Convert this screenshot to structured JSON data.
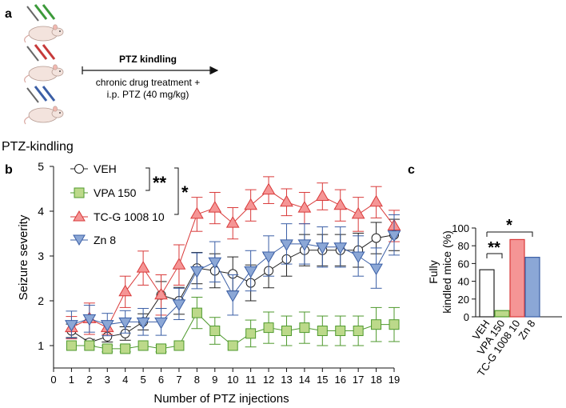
{
  "panels": {
    "a": "a",
    "b": "b",
    "c": "c"
  },
  "panel_a": {
    "protocol_title": "PTZ kindling",
    "treatment_line1": "chronic drug treatment +",
    "treatment_line2": "i.p. PTZ (40 mg/kg)",
    "caption": "PTZ-kindling"
  },
  "chart_data": [
    {
      "type": "line",
      "title": "",
      "xlabel": "Number of PTZ injections",
      "ylabel": "Seizure severity",
      "xlim": [
        0,
        19
      ],
      "ylim": [
        0.5,
        5
      ],
      "x": [
        1,
        2,
        3,
        4,
        5,
        6,
        7,
        8,
        9,
        10,
        11,
        12,
        13,
        14,
        15,
        16,
        17,
        18,
        19
      ],
      "xticks": [
        "0",
        "1",
        "2",
        "3",
        "4",
        "5",
        "6",
        "7",
        "8",
        "9",
        "10",
        "11",
        "12",
        "13",
        "14",
        "15",
        "16",
        "17",
        "18",
        "19"
      ],
      "yticks": [
        "1",
        "2",
        "3",
        "4",
        "5"
      ],
      "grid": false,
      "legend_position": "top-left",
      "series": [
        {
          "name": "VEH",
          "marker": "circle",
          "color": "#ffffff",
          "stroke": "#222222",
          "values": [
            1.33,
            1.07,
            1.2,
            1.27,
            1.53,
            2.13,
            2.0,
            2.73,
            2.67,
            2.6,
            2.4,
            2.67,
            2.93,
            3.13,
            3.13,
            3.13,
            3.13,
            3.4,
            3.47
          ],
          "sem": [
            0.15,
            0.07,
            0.12,
            0.15,
            0.18,
            0.3,
            0.3,
            0.35,
            0.38,
            0.38,
            0.4,
            0.38,
            0.38,
            0.35,
            0.35,
            0.35,
            0.38,
            0.35,
            0.35
          ]
        },
        {
          "name": "VPA 150",
          "marker": "square",
          "color": "#bcd98a",
          "stroke": "#4f9a2e",
          "values": [
            1.0,
            1.0,
            0.93,
            0.93,
            1.0,
            0.93,
            1.0,
            1.73,
            1.33,
            1.0,
            1.27,
            1.4,
            1.33,
            1.4,
            1.33,
            1.33,
            1.33,
            1.47,
            1.47
          ],
          "sem": [
            0.0,
            0.0,
            0.07,
            0.07,
            0.0,
            0.07,
            0.0,
            0.35,
            0.3,
            0.0,
            0.3,
            0.35,
            0.33,
            0.35,
            0.33,
            0.33,
            0.33,
            0.38,
            0.38
          ]
        },
        {
          "name": "TC-G 1008 10",
          "marker": "triangle-up",
          "color": "#f59595",
          "stroke": "#d93a3a",
          "values": [
            1.4,
            1.6,
            1.4,
            2.2,
            2.73,
            2.13,
            2.8,
            3.93,
            4.07,
            3.73,
            4.13,
            4.47,
            4.2,
            4.07,
            4.33,
            4.13,
            3.93,
            4.2,
            3.67
          ],
          "sem": [
            0.25,
            0.35,
            0.15,
            0.35,
            0.38,
            0.45,
            0.45,
            0.38,
            0.35,
            0.35,
            0.35,
            0.3,
            0.3,
            0.35,
            0.3,
            0.35,
            0.38,
            0.35,
            0.35
          ]
        },
        {
          "name": "Zn 8",
          "marker": "triangle-down",
          "color": "#8ba7d6",
          "stroke": "#3b5fa6",
          "values": [
            1.47,
            1.6,
            1.47,
            1.53,
            1.53,
            1.53,
            1.93,
            2.67,
            2.87,
            2.13,
            2.67,
            3.0,
            3.27,
            3.27,
            3.2,
            3.2,
            3.0,
            2.73,
            3.47
          ],
          "sem": [
            0.3,
            0.3,
            0.25,
            0.25,
            0.3,
            0.3,
            0.35,
            0.4,
            0.45,
            0.45,
            0.45,
            0.45,
            0.45,
            0.45,
            0.45,
            0.45,
            0.45,
            0.45,
            0.45
          ]
        }
      ],
      "annotations": [
        "**",
        "*"
      ]
    },
    {
      "type": "bar",
      "title": "",
      "xlabel": "",
      "ylabel_line1": "Fully",
      "ylabel_line2": "kindled mice (%)",
      "categories": [
        "VEH",
        "VPA 150",
        "TC-G 1008 10",
        "Zn 8"
      ],
      "values": [
        53,
        7,
        87,
        67
      ],
      "colors": [
        "#ffffff",
        "#bcd98a",
        "#f59595",
        "#8ba7d6"
      ],
      "strokes": [
        "#222222",
        "#4f9a2e",
        "#d93a3a",
        "#3b5fa6"
      ],
      "ylim": [
        0,
        100
      ],
      "yticks": [
        "0",
        "20",
        "40",
        "60",
        "80",
        "100"
      ],
      "annotations": [
        "*",
        "**"
      ]
    }
  ]
}
